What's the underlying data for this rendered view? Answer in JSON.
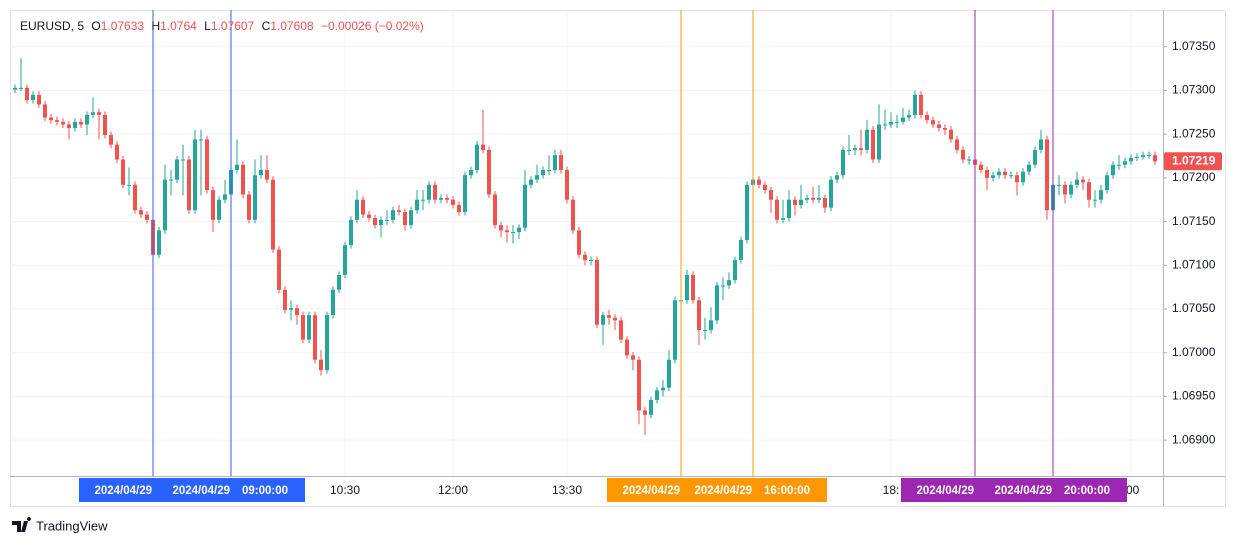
{
  "chart_data": {
    "type": "candlestick",
    "legend": {
      "symbol": "EURUSD, 5",
      "open_label": "O",
      "open": 1.07633,
      "high_label": "H",
      "high": 1.0764,
      "low_label": "L",
      "low": 1.07607,
      "close_label": "C",
      "close": 1.07608,
      "change": "−0.00026 (−0.02%)"
    },
    "up_color": "#26a69a",
    "down_color": "#ef5350",
    "grid": true,
    "ylim": [
      1.06859,
      1.07392
    ],
    "yticks": [
      {
        "value": 1.069,
        "label": "1.06900"
      },
      {
        "value": 1.0695,
        "label": "1.06950"
      },
      {
        "value": 1.07,
        "label": "1.07000"
      },
      {
        "value": 1.0705,
        "label": "1.07050"
      },
      {
        "value": 1.071,
        "label": "1.07100"
      },
      {
        "value": 1.0715,
        "label": "1.07150"
      },
      {
        "value": 1.072,
        "label": "1.07200"
      },
      {
        "value": 1.0725,
        "label": "1.07250"
      },
      {
        "value": 1.073,
        "label": "1.07300"
      },
      {
        "value": 1.0735,
        "label": "1.07350"
      }
    ],
    "categories": [
      null,
      null,
      null,
      null,
      null,
      null,
      null,
      null,
      null,
      null,
      null,
      null,
      null,
      null,
      null,
      null,
      null,
      null,
      null,
      null,
      null,
      null,
      null,
      null,
      null,
      null,
      null,
      null,
      null,
      null,
      null,
      null,
      null,
      null,
      null,
      null,
      null,
      null,
      null,
      null,
      null,
      null,
      null,
      null,
      null,
      null,
      null,
      null,
      null,
      null,
      null,
      null,
      null,
      null,
      null,
      "10:30",
      null,
      null,
      null,
      null,
      null,
      null,
      null,
      null,
      null,
      null,
      null,
      null,
      null,
      null,
      null,
      null,
      null,
      "12:00",
      null,
      null,
      null,
      null,
      null,
      null,
      null,
      null,
      null,
      null,
      null,
      null,
      null,
      null,
      null,
      null,
      null,
      null,
      "13:30",
      null,
      null,
      null,
      null,
      null,
      null,
      null,
      null,
      null,
      null,
      null,
      null,
      null,
      null,
      null,
      null,
      null,
      null,
      null,
      null,
      null,
      null,
      null,
      null,
      null,
      null,
      null,
      null,
      null,
      null,
      null,
      null,
      null,
      null,
      null,
      null,
      null,
      null,
      null,
      null,
      null,
      null,
      null,
      null,
      null,
      null,
      null,
      null,
      null,
      null,
      null,
      null,
      null,
      "18:",
      null,
      null,
      null,
      null,
      null,
      null,
      null,
      null,
      null,
      null,
      null,
      null,
      null,
      null,
      null,
      null,
      null,
      null,
      null,
      null,
      null,
      null,
      null,
      null,
      null,
      null,
      null,
      null,
      null,
      null,
      null,
      null,
      null,
      null,
      null,
      null,
      null,
      null,
      null,
      ":00",
      null,
      null,
      null,
      null
    ],
    "open": [
      1.07301,
      1.07303,
      1.07303,
      1.07289,
      1.07295,
      1.07284,
      1.07269,
      1.07266,
      1.07264,
      1.07261,
      1.07257,
      1.07264,
      1.07261,
      1.07272,
      1.07275,
      1.07272,
      1.07249,
      1.07238,
      1.07221,
      1.07192,
      1.07192,
      1.07163,
      1.07158,
      1.07152,
      1.07112,
      1.0714,
      1.07198,
      1.07198,
      1.07221,
      1.07221,
      1.07163,
      1.07244,
      1.07244,
      1.07186,
      1.07152,
      1.07175,
      1.07181,
      1.07209,
      1.07215,
      1.07181,
      1.07152,
      1.07203,
      1.07209,
      1.07198,
      1.07118,
      1.07072,
      1.07049,
      1.07051,
      1.07043,
      1.07015,
      1.07043,
      1.06992,
      1.0698,
      1.07043,
      1.07072,
      1.07089,
      1.07123,
      1.07152,
      1.07175,
      1.07158,
      1.07154,
      1.07146,
      1.07152,
      1.07152,
      1.07163,
      1.07161,
      1.07146,
      1.07163,
      1.07175,
      1.07175,
      1.07192,
      1.07175,
      1.07177,
      1.07175,
      1.07169,
      1.07161,
      1.07203,
      1.07209,
      1.07238,
      1.07232,
      1.07181,
      1.07146,
      1.0714,
      1.07138,
      1.07138,
      1.07143,
      1.07192,
      1.07198,
      1.07203,
      1.07209,
      1.07209,
      1.07226,
      1.07209,
      1.07175,
      1.0714,
      1.07112,
      1.07106,
      1.07106,
      1.07032,
      1.07043,
      1.0704,
      1.07037,
      1.07015,
      1.06997,
      1.06992,
      1.06934,
      1.06929,
      1.06946,
      1.06957,
      1.0696,
      1.06992,
      1.0706,
      1.0706,
      1.07089,
      1.0706,
      1.07026,
      1.07026,
      1.07037,
      1.07077,
      1.07077,
      1.07083,
      1.07106,
      1.07129,
      1.07192,
      1.07198,
      1.07192,
      1.07186,
      1.07175,
      1.07152,
      1.07154,
      1.07175,
      1.07169,
      1.07175,
      1.07177,
      1.07175,
      1.07177,
      1.07166,
      1.07198,
      1.07203,
      1.07232,
      1.07232,
      1.07234,
      1.07232,
      1.07255,
      1.07221,
      1.07261,
      1.07261,
      1.07264,
      1.07264,
      1.07269,
      1.07272,
      1.07295,
      1.07272,
      1.07266,
      1.07261,
      1.07257,
      1.07255,
      1.07244,
      1.07232,
      1.07221,
      1.07221,
      1.07215,
      1.07209,
      1.072,
      1.07203,
      1.07207,
      1.07203,
      1.07203,
      1.07195,
      1.07207,
      1.07215,
      1.07232,
      1.07244,
      1.07163,
      1.07192,
      1.07192,
      1.07181,
      1.07192,
      1.07198,
      1.07195,
      1.07175,
      1.07175,
      1.07186,
      1.07203,
      1.07215,
      1.07215,
      1.07219,
      1.07223,
      1.07224,
      1.07226,
      1.07226
    ],
    "high": [
      1.07307,
      1.07337,
      1.07307,
      1.07299,
      1.07299,
      1.07288,
      1.07273,
      1.0727,
      1.07268,
      1.07265,
      1.07268,
      1.07268,
      1.07276,
      1.07292,
      1.07279,
      1.07276,
      1.07253,
      1.07242,
      1.07225,
      1.07212,
      1.07196,
      1.07167,
      1.07162,
      1.07156,
      1.07144,
      1.07215,
      1.07209,
      1.07225,
      1.07238,
      1.07225,
      1.07255,
      1.07255,
      1.07248,
      1.0719,
      1.07179,
      1.07198,
      1.07213,
      1.07244,
      1.07219,
      1.07185,
      1.07221,
      1.07226,
      1.07226,
      1.07202,
      1.07122,
      1.07076,
      1.0706,
      1.07055,
      1.07047,
      1.07047,
      1.07047,
      1.07003,
      1.07047,
      1.07076,
      1.07093,
      1.07127,
      1.07156,
      1.07186,
      1.07179,
      1.07162,
      1.07158,
      1.07156,
      1.07163,
      1.07167,
      1.07169,
      1.07165,
      1.07167,
      1.07186,
      1.07186,
      1.07196,
      1.07196,
      1.07181,
      1.07181,
      1.07179,
      1.07173,
      1.07207,
      1.07213,
      1.07242,
      1.07278,
      1.07236,
      1.07185,
      1.0715,
      1.07146,
      1.07146,
      1.07147,
      1.07209,
      1.07202,
      1.07215,
      1.07213,
      1.07226,
      1.07232,
      1.07232,
      1.07213,
      1.07179,
      1.07144,
      1.07116,
      1.0711,
      1.0711,
      1.07047,
      1.07049,
      1.07044,
      1.07041,
      1.07019,
      1.07001,
      1.06996,
      1.06938,
      1.0695,
      1.06961,
      1.06969,
      1.07003,
      1.07064,
      1.07106,
      1.07095,
      1.07093,
      1.07064,
      1.0704,
      1.07052,
      1.07081,
      1.07086,
      1.07092,
      1.0711,
      1.07133,
      1.07196,
      1.07215,
      1.07202,
      1.07196,
      1.0719,
      1.07179,
      1.07175,
      1.07186,
      1.07179,
      1.07192,
      1.07181,
      1.0719,
      1.07192,
      1.07181,
      1.07202,
      1.07207,
      1.07236,
      1.07249,
      1.07238,
      1.07255,
      1.07266,
      1.07259,
      1.07284,
      1.07278,
      1.07275,
      1.07272,
      1.0728,
      1.07278,
      1.073,
      1.07299,
      1.07276,
      1.0727,
      1.07265,
      1.07261,
      1.07259,
      1.07248,
      1.07236,
      1.07225,
      1.07225,
      1.07219,
      1.07213,
      1.07207,
      1.07211,
      1.07211,
      1.07207,
      1.07207,
      1.07211,
      1.07219,
      1.07236,
      1.07255,
      1.07248,
      1.07196,
      1.07203,
      1.07196,
      1.07196,
      1.07207,
      1.07202,
      1.07199,
      1.07186,
      1.07192,
      1.07207,
      1.07219,
      1.07226,
      1.07223,
      1.07227,
      1.07228,
      1.0723,
      1.0723,
      1.0723
    ],
    "low": [
      1.07297,
      1.07299,
      1.07285,
      1.07285,
      1.0728,
      1.07265,
      1.07262,
      1.0726,
      1.07257,
      1.07244,
      1.07253,
      1.07257,
      1.07249,
      1.07268,
      1.07244,
      1.07245,
      1.07234,
      1.07217,
      1.07188,
      1.0718,
      1.07159,
      1.07154,
      1.07148,
      1.07095,
      1.07108,
      1.07136,
      1.0718,
      1.07194,
      1.0718,
      1.07159,
      1.07159,
      1.0718,
      1.07182,
      1.07138,
      1.07148,
      1.07171,
      1.07163,
      1.07205,
      1.07177,
      1.07148,
      1.07148,
      1.07199,
      1.07194,
      1.07114,
      1.07068,
      1.07045,
      1.07037,
      1.07032,
      1.07011,
      1.07011,
      1.06988,
      1.06974,
      1.06976,
      1.07039,
      1.07068,
      1.07085,
      1.07119,
      1.07148,
      1.07154,
      1.0715,
      1.07142,
      1.07132,
      1.07146,
      1.07148,
      1.07157,
      1.0714,
      1.07142,
      1.07159,
      1.07163,
      1.07171,
      1.07171,
      1.07171,
      1.07171,
      1.07165,
      1.07157,
      1.07157,
      1.07199,
      1.07205,
      1.07228,
      1.07177,
      1.07142,
      1.07132,
      1.07126,
      1.07125,
      1.0713,
      1.07139,
      1.07188,
      1.07194,
      1.07199,
      1.07203,
      1.07205,
      1.07205,
      1.07171,
      1.07136,
      1.07108,
      1.071,
      1.071,
      1.07028,
      1.07009,
      1.07032,
      1.07026,
      1.07011,
      1.06993,
      1.0698,
      1.06918,
      1.06906,
      1.06925,
      1.06942,
      1.0695,
      1.06956,
      1.06988,
      1.0705,
      1.07056,
      1.07056,
      1.07009,
      1.07015,
      1.07022,
      1.07033,
      1.0706,
      1.07073,
      1.07079,
      1.07102,
      1.07125,
      1.07188,
      1.07188,
      1.07182,
      1.0716,
      1.07148,
      1.07148,
      1.0715,
      1.07157,
      1.07165,
      1.07171,
      1.07171,
      1.07171,
      1.0716,
      1.07162,
      1.07194,
      1.07199,
      1.07226,
      1.07226,
      1.07226,
      1.07228,
      1.07217,
      1.07217,
      1.07255,
      1.07257,
      1.07257,
      1.07261,
      1.07265,
      1.07268,
      1.07268,
      1.07262,
      1.07257,
      1.07253,
      1.07249,
      1.0724,
      1.07228,
      1.07217,
      1.07215,
      1.07211,
      1.07205,
      1.07186,
      1.07196,
      1.07199,
      1.07199,
      1.07199,
      1.0718,
      1.07191,
      1.07203,
      1.07211,
      1.07228,
      1.07152,
      1.07159,
      1.0718,
      1.07171,
      1.07177,
      1.07188,
      1.07186,
      1.07166,
      1.07166,
      1.07171,
      1.07182,
      1.07199,
      1.07209,
      1.07211,
      1.07215,
      1.07219,
      1.07221,
      1.07222,
      1.07215
    ],
    "close": [
      1.07303,
      1.07303,
      1.07289,
      1.07295,
      1.07284,
      1.07269,
      1.07266,
      1.07264,
      1.07261,
      1.07257,
      1.07264,
      1.07261,
      1.07272,
      1.07275,
      1.07272,
      1.07249,
      1.07238,
      1.07221,
      1.07192,
      1.07192,
      1.07163,
      1.07158,
      1.07152,
      1.07112,
      1.0714,
      1.07198,
      1.07198,
      1.07221,
      1.07221,
      1.07163,
      1.07244,
      1.07244,
      1.07186,
      1.07152,
      1.07175,
      1.07181,
      1.07209,
      1.07215,
      1.07181,
      1.07152,
      1.07203,
      1.07209,
      1.07198,
      1.07118,
      1.07072,
      1.07049,
      1.07051,
      1.07043,
      1.07015,
      1.07043,
      1.06992,
      1.0698,
      1.07043,
      1.07072,
      1.07089,
      1.07123,
      1.07152,
      1.07175,
      1.07158,
      1.07154,
      1.07146,
      1.07152,
      1.07152,
      1.07163,
      1.07161,
      1.07146,
      1.07163,
      1.07175,
      1.07175,
      1.07192,
      1.07175,
      1.07177,
      1.07175,
      1.07169,
      1.07161,
      1.07203,
      1.07209,
      1.07238,
      1.07232,
      1.07181,
      1.07146,
      1.0714,
      1.07138,
      1.07138,
      1.07143,
      1.07192,
      1.07198,
      1.07203,
      1.07209,
      1.07209,
      1.07226,
      1.07209,
      1.07175,
      1.0714,
      1.07112,
      1.07106,
      1.07106,
      1.07032,
      1.07043,
      1.0704,
      1.07037,
      1.07015,
      1.06997,
      1.06992,
      1.06934,
      1.06929,
      1.06946,
      1.06957,
      1.0696,
      1.06992,
      1.0706,
      1.0706,
      1.07089,
      1.0706,
      1.07026,
      1.07026,
      1.07037,
      1.07077,
      1.07077,
      1.07083,
      1.07106,
      1.07129,
      1.07192,
      1.07198,
      1.07192,
      1.07186,
      1.07175,
      1.07152,
      1.07154,
      1.07175,
      1.07169,
      1.07175,
      1.07177,
      1.07175,
      1.07177,
      1.07166,
      1.07198,
      1.07203,
      1.07232,
      1.07232,
      1.07234,
      1.07232,
      1.07255,
      1.07221,
      1.07261,
      1.07261,
      1.07264,
      1.07264,
      1.07269,
      1.07272,
      1.07295,
      1.07272,
      1.07266,
      1.07261,
      1.07257,
      1.07255,
      1.07244,
      1.07232,
      1.07221,
      1.07221,
      1.07215,
      1.07209,
      1.072,
      1.07203,
      1.07207,
      1.07203,
      1.07203,
      1.07195,
      1.07207,
      1.07215,
      1.07232,
      1.07244,
      1.07163,
      1.07192,
      1.07192,
      1.07181,
      1.07192,
      1.07198,
      1.07195,
      1.07175,
      1.07175,
      1.07186,
      1.07203,
      1.07215,
      1.07215,
      1.07219,
      1.07223,
      1.07224,
      1.07226,
      1.07226,
      1.07219
    ],
    "ranges": [
      {
        "color": "#2962ff",
        "start": 23,
        "end": 36,
        "start_label": "2024/04/29",
        "end_label": "2024/04/29",
        "end_time": "09:00:00"
      },
      {
        "color": "#ff9800",
        "start": 111,
        "end": 123,
        "start_label": "2024/04/29",
        "end_label": "2024/04/29",
        "end_time": "16:00:00"
      },
      {
        "color": "#9c27b0",
        "start": 160,
        "end": 173,
        "start_label": "2024/04/29",
        "end_label": "2024/04/29",
        "end_time": "20:00:00"
      }
    ],
    "footer": "TradingView"
  }
}
